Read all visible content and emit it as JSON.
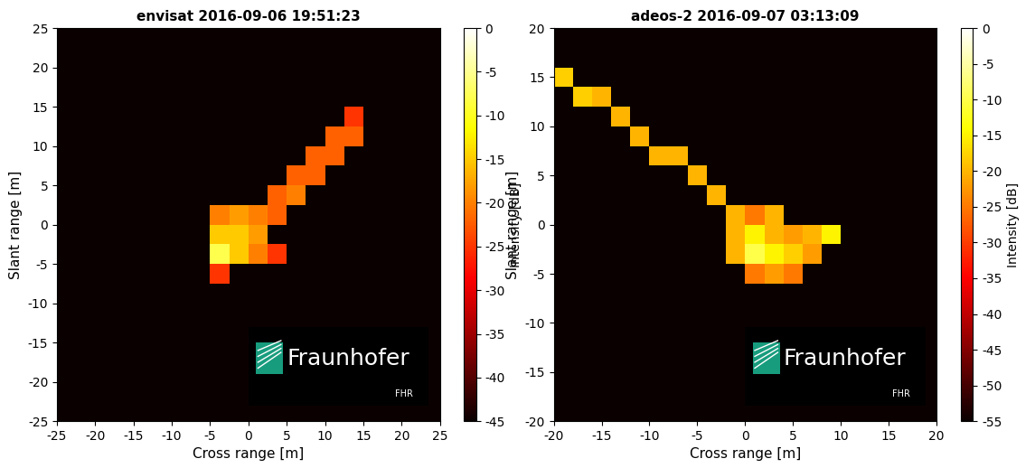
{
  "chart_data": [
    {
      "type": "heatmap",
      "title": "envisat 2016-09-06 19:51:23",
      "x_label": "Cross range [m]",
      "y_label": "Slant range [m]",
      "xlim": [
        -25,
        25
      ],
      "ylim": [
        -25,
        25
      ],
      "xticks": [
        -25,
        -20,
        -15,
        -10,
        -5,
        0,
        5,
        10,
        15,
        20,
        25
      ],
      "yticks": [
        -25,
        -20,
        -15,
        -10,
        -5,
        0,
        5,
        10,
        15,
        20,
        25
      ],
      "x": [
        -23.75,
        -21.25,
        -18.75,
        -16.25,
        -13.75,
        -11.25,
        -8.75,
        -6.25,
        -3.75,
        -1.25,
        1.25,
        3.75,
        6.25,
        8.75,
        11.25,
        13.75,
        16.25,
        18.75,
        21.25,
        23.75
      ],
      "y": [
        -23.75,
        -21.25,
        -18.75,
        -16.25,
        -13.75,
        -11.25,
        -8.75,
        -6.25,
        -3.75,
        -1.25,
        1.25,
        3.75,
        6.25,
        8.75,
        11.25,
        13.75,
        16.25,
        18.75,
        21.25,
        23.75
      ],
      "cells": [
        [
          -45,
          -45,
          -45,
          -45,
          -45,
          -45,
          -45,
          -45,
          -45,
          -45,
          -45,
          -45,
          -45,
          -45,
          -45,
          -45,
          -45,
          -45,
          -45,
          -45
        ],
        [
          -45,
          -45,
          -45,
          -45,
          -45,
          -45,
          -45,
          -45,
          -45,
          -45,
          -45,
          -45,
          -45,
          -45,
          -45,
          -45,
          -45,
          -45,
          -45,
          -45
        ],
        [
          -45,
          -45,
          -45,
          -45,
          -45,
          -45,
          -45,
          -45,
          -45,
          -45,
          -45,
          -45,
          -45,
          -45,
          -45,
          -45,
          -45,
          -45,
          -45,
          -45
        ],
        [
          -45,
          -45,
          -45,
          -45,
          -45,
          -45,
          -45,
          -45,
          -45,
          -45,
          -45,
          -45,
          -45,
          -45,
          -45,
          -45,
          -45,
          -45,
          -45,
          -45
        ],
        [
          -45,
          -45,
          -45,
          -45,
          -45,
          -45,
          -45,
          -45,
          -45,
          -45,
          -45,
          -45,
          -45,
          -45,
          -45,
          -45,
          -45,
          -45,
          -45,
          -45
        ],
        [
          -45,
          -45,
          -45,
          -45,
          -45,
          -45,
          -45,
          -45,
          -45,
          -45,
          -45,
          -45,
          -45,
          -45,
          -45,
          -45,
          -45,
          -45,
          -45,
          -45
        ],
        [
          -45,
          -45,
          -45,
          -45,
          -45,
          -45,
          -45,
          -45,
          -45,
          -45,
          -45,
          -45,
          -45,
          -45,
          -45,
          -45,
          -45,
          -45,
          -45,
          -45
        ],
        [
          -45,
          -45,
          -45,
          -45,
          -45,
          -45,
          -45,
          -45,
          -25,
          -45,
          -45,
          -45,
          -45,
          -45,
          -45,
          -45,
          -45,
          -45,
          -45,
          -45
        ],
        [
          -45,
          -45,
          -45,
          -45,
          -45,
          -45,
          -45,
          -45,
          -8,
          -15,
          -20,
          -25,
          -45,
          -45,
          -45,
          -45,
          -45,
          -45,
          -45,
          -45
        ],
        [
          -45,
          -45,
          -45,
          -45,
          -45,
          -45,
          -45,
          -45,
          -15,
          -15,
          -18,
          -45,
          -45,
          -45,
          -45,
          -45,
          -45,
          -45,
          -45,
          -45
        ],
        [
          -45,
          -45,
          -45,
          -45,
          -45,
          -45,
          -45,
          -45,
          -20,
          -18,
          -20,
          -22,
          -45,
          -45,
          -45,
          -45,
          -45,
          -45,
          -45,
          -45
        ],
        [
          -45,
          -45,
          -45,
          -45,
          -45,
          -45,
          -45,
          -45,
          -45,
          -45,
          -45,
          -22,
          -20,
          -45,
          -45,
          -45,
          -45,
          -45,
          -45,
          -45
        ],
        [
          -45,
          -45,
          -45,
          -45,
          -45,
          -45,
          -45,
          -45,
          -45,
          -45,
          -45,
          -45,
          -22,
          -22,
          -45,
          -45,
          -45,
          -45,
          -45,
          -45
        ],
        [
          -45,
          -45,
          -45,
          -45,
          -45,
          -45,
          -45,
          -45,
          -45,
          -45,
          -45,
          -45,
          -45,
          -22,
          -22,
          -45,
          -45,
          -45,
          -45,
          -45
        ],
        [
          -45,
          -45,
          -45,
          -45,
          -45,
          -45,
          -45,
          -45,
          -45,
          -45,
          -45,
          -45,
          -45,
          -45,
          -22,
          -22,
          -45,
          -45,
          -45,
          -45
        ],
        [
          -45,
          -45,
          -45,
          -45,
          -45,
          -45,
          -45,
          -45,
          -45,
          -45,
          -45,
          -45,
          -45,
          -45,
          -45,
          -25,
          -45,
          -45,
          -45,
          -45
        ],
        [
          -45,
          -45,
          -45,
          -45,
          -45,
          -45,
          -45,
          -45,
          -45,
          -45,
          -45,
          -45,
          -45,
          -45,
          -45,
          -45,
          -45,
          -45,
          -45,
          -45
        ],
        [
          -45,
          -45,
          -45,
          -45,
          -45,
          -45,
          -45,
          -45,
          -45,
          -45,
          -45,
          -45,
          -45,
          -45,
          -45,
          -45,
          -45,
          -45,
          -45,
          -45
        ],
        [
          -45,
          -45,
          -45,
          -45,
          -45,
          -45,
          -45,
          -45,
          -45,
          -45,
          -45,
          -45,
          -45,
          -45,
          -45,
          -45,
          -45,
          -45,
          -45,
          -45
        ],
        [
          -45,
          -45,
          -45,
          -45,
          -45,
          -45,
          -45,
          -45,
          -45,
          -45,
          -45,
          -45,
          -45,
          -45,
          -45,
          -45,
          -45,
          -45,
          -45,
          -45
        ]
      ],
      "colorbar": {
        "label": "Intensity [dB]",
        "range": [
          -45,
          0
        ],
        "ticks": [
          0,
          -5,
          -10,
          -15,
          -20,
          -25,
          -30,
          -35,
          -40,
          -45
        ]
      },
      "logo": {
        "name": "Fraunhofer",
        "unit": "FHR"
      }
    },
    {
      "type": "heatmap",
      "title": "adeos-2 2016-09-07 03:13:09",
      "x_label": "Cross range [m]",
      "y_label": "Slant range [m]",
      "xlim": [
        -20,
        20
      ],
      "ylim": [
        -20,
        20
      ],
      "xticks": [
        -20,
        -15,
        -10,
        -5,
        0,
        5,
        10,
        15,
        20
      ],
      "yticks": [
        -20,
        -15,
        -10,
        -5,
        0,
        5,
        10,
        15,
        20
      ],
      "x": [
        -19,
        -17,
        -15,
        -13,
        -11,
        -9,
        -7,
        -5,
        -3,
        -1,
        1,
        3,
        5,
        7,
        9,
        11,
        13,
        15,
        17,
        19
      ],
      "y": [
        -19,
        -17,
        -15,
        -13,
        -11,
        -9,
        -7,
        -5,
        -3,
        -1,
        1,
        3,
        5,
        7,
        9,
        11,
        13,
        15,
        17,
        19
      ],
      "cells": [
        [
          -55,
          -55,
          -55,
          -55,
          -55,
          -55,
          -55,
          -55,
          -55,
          -55,
          -55,
          -55,
          -55,
          -55,
          -55,
          -55,
          -55,
          -55,
          -55,
          -55
        ],
        [
          -55,
          -55,
          -55,
          -55,
          -55,
          -55,
          -55,
          -55,
          -55,
          -55,
          -55,
          -55,
          -55,
          -55,
          -55,
          -55,
          -55,
          -55,
          -55,
          -55
        ],
        [
          -55,
          -55,
          -55,
          -55,
          -55,
          -55,
          -55,
          -55,
          -55,
          -55,
          -55,
          -55,
          -55,
          -55,
          -55,
          -55,
          -55,
          -55,
          -55,
          -55
        ],
        [
          -55,
          -55,
          -55,
          -55,
          -55,
          -55,
          -55,
          -55,
          -55,
          -55,
          -55,
          -55,
          -55,
          -55,
          -55,
          -55,
          -55,
          -55,
          -55,
          -55
        ],
        [
          -55,
          -55,
          -55,
          -55,
          -55,
          -55,
          -55,
          -55,
          -55,
          -55,
          -55,
          -55,
          -55,
          -55,
          -55,
          -55,
          -55,
          -55,
          -55,
          -55
        ],
        [
          -55,
          -55,
          -55,
          -55,
          -55,
          -55,
          -55,
          -55,
          -55,
          -55,
          -55,
          -55,
          -55,
          -55,
          -55,
          -55,
          -55,
          -55,
          -55,
          -55
        ],
        [
          -55,
          -55,
          -55,
          -55,
          -55,
          -55,
          -55,
          -55,
          -55,
          -55,
          -55,
          -55,
          -55,
          -55,
          -55,
          -55,
          -55,
          -55,
          -55,
          -55
        ],
        [
          -55,
          -55,
          -55,
          -55,
          -55,
          -55,
          -55,
          -55,
          -55,
          -55,
          -25,
          -22,
          -25,
          -55,
          -55,
          -55,
          -55,
          -55,
          -55,
          -55
        ],
        [
          -55,
          -55,
          -55,
          -55,
          -55,
          -55,
          -55,
          -55,
          -55,
          -20,
          -10,
          -15,
          -18,
          -22,
          -55,
          -55,
          -55,
          -55,
          -55,
          -55
        ],
        [
          -55,
          -55,
          -55,
          -55,
          -55,
          -55,
          -55,
          -55,
          -55,
          -20,
          -15,
          -20,
          -22,
          -20,
          -15,
          -55,
          -55,
          -55,
          -55,
          -55
        ],
        [
          -55,
          -55,
          -55,
          -55,
          -55,
          -55,
          -55,
          -55,
          -55,
          -20,
          -25,
          -20,
          -55,
          -55,
          -55,
          -55,
          -55,
          -55,
          -55,
          -55
        ],
        [
          -55,
          -55,
          -55,
          -55,
          -55,
          -55,
          -55,
          -55,
          -20,
          -55,
          -55,
          -55,
          -55,
          -55,
          -55,
          -55,
          -55,
          -55,
          -55,
          -55
        ],
        [
          -55,
          -55,
          -55,
          -55,
          -55,
          -55,
          -55,
          -20,
          -55,
          -55,
          -55,
          -55,
          -55,
          -55,
          -55,
          -55,
          -55,
          -55,
          -55,
          -55
        ],
        [
          -55,
          -55,
          -55,
          -55,
          -55,
          -20,
          -20,
          -55,
          -55,
          -55,
          -55,
          -55,
          -55,
          -55,
          -55,
          -55,
          -55,
          -55,
          -55,
          -55
        ],
        [
          -55,
          -55,
          -55,
          -55,
          -20,
          -55,
          -55,
          -55,
          -55,
          -55,
          -55,
          -55,
          -55,
          -55,
          -55,
          -55,
          -55,
          -55,
          -55,
          -55
        ],
        [
          -55,
          -55,
          -55,
          -20,
          -55,
          -55,
          -55,
          -55,
          -55,
          -55,
          -55,
          -55,
          -55,
          -55,
          -55,
          -55,
          -55,
          -55,
          -55,
          -55
        ],
        [
          -55,
          -18,
          -20,
          -55,
          -55,
          -55,
          -55,
          -55,
          -55,
          -55,
          -55,
          -55,
          -55,
          -55,
          -55,
          -55,
          -55,
          -55,
          -55,
          -55
        ],
        [
          -18,
          -55,
          -55,
          -55,
          -55,
          -55,
          -55,
          -55,
          -55,
          -55,
          -55,
          -55,
          -55,
          -55,
          -55,
          -55,
          -55,
          -55,
          -55,
          -55
        ],
        [
          -55,
          -55,
          -55,
          -55,
          -55,
          -55,
          -55,
          -55,
          -55,
          -55,
          -55,
          -55,
          -55,
          -55,
          -55,
          -55,
          -55,
          -55,
          -55,
          -55
        ],
        [
          -55,
          -55,
          -55,
          -55,
          -55,
          -55,
          -55,
          -55,
          -55,
          -55,
          -55,
          -55,
          -55,
          -55,
          -55,
          -55,
          -55,
          -55,
          -55,
          -55
        ]
      ],
      "colorbar": {
        "label": "Intensity [dB]",
        "range": [
          -55,
          0
        ],
        "ticks": [
          0,
          -5,
          -10,
          -15,
          -20,
          -25,
          -30,
          -35,
          -40,
          -45,
          -50,
          -55
        ]
      },
      "logo": {
        "name": "Fraunhofer",
        "unit": "FHR"
      }
    }
  ]
}
